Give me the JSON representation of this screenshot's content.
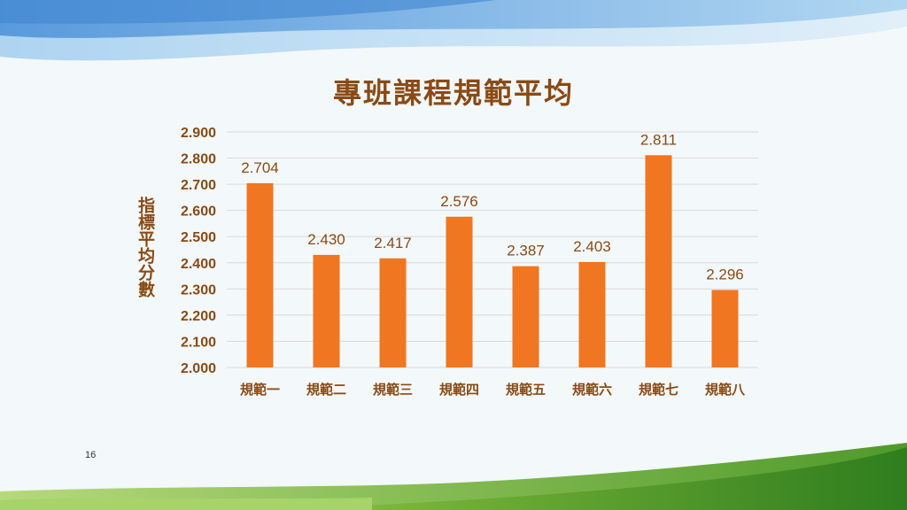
{
  "slide": {
    "title": "專班課程規範平均",
    "page_number": "16"
  },
  "colors": {
    "bar": "#f07622",
    "text": "#8a4a14",
    "grid": "#d9d9d9"
  },
  "chart_data": {
    "type": "bar",
    "title": "專班課程規範平均",
    "xlabel": "",
    "ylabel": "指標平均分數",
    "categories": [
      "規範一",
      "規範二",
      "規範三",
      "規範四",
      "規範五",
      "規範六",
      "規範七",
      "規範八"
    ],
    "values": [
      2.704,
      2.43,
      2.417,
      2.576,
      2.387,
      2.403,
      2.811,
      2.296
    ],
    "value_labels": [
      "2.704",
      "2.430",
      "2.417",
      "2.576",
      "2.387",
      "2.403",
      "2.811",
      "2.296"
    ],
    "ylim": [
      2.0,
      2.9
    ],
    "yticks": [
      "2.000",
      "2.100",
      "2.200",
      "2.300",
      "2.400",
      "2.500",
      "2.600",
      "2.700",
      "2.800",
      "2.900"
    ],
    "grid": true,
    "legend": "none"
  }
}
